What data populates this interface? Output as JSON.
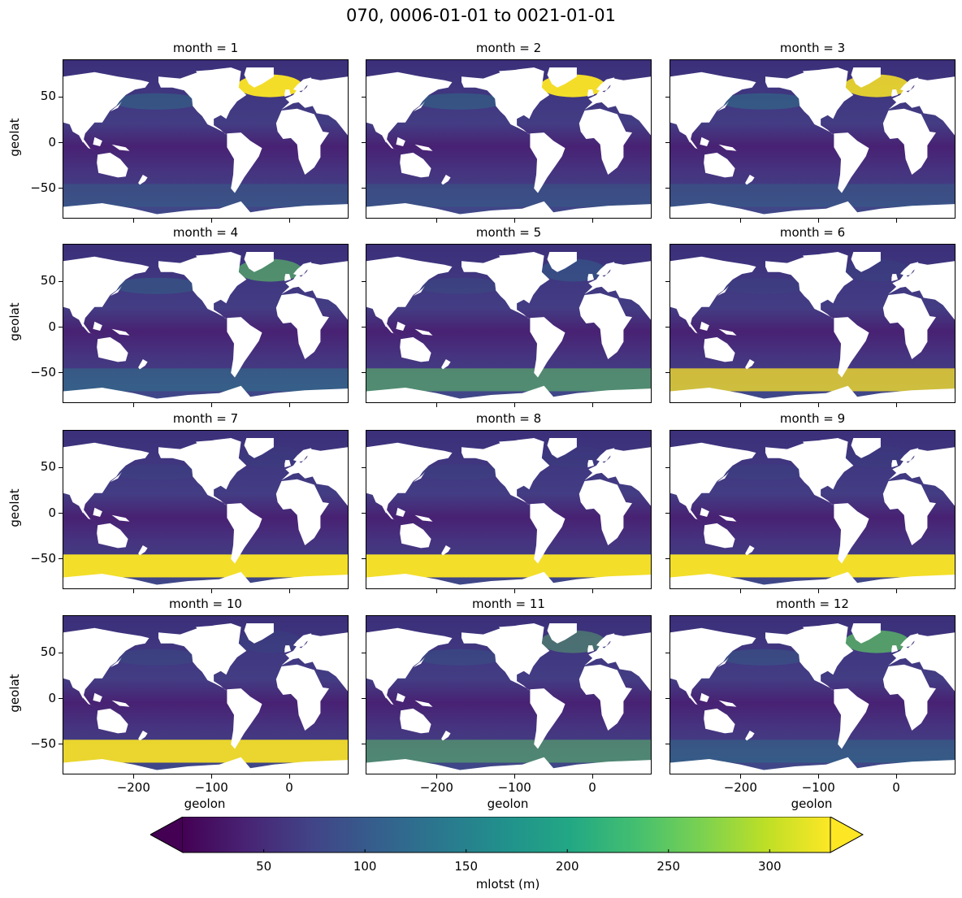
{
  "figure_title": "070, 0006-01-01 to 0021-01-01",
  "chart_data": {
    "type": "heatmap",
    "title": "070, 0006-01-01 to 0021-01-01",
    "xlabel": "geolon",
    "ylabel": "geolat",
    "xlim": [
      -290,
      75
    ],
    "ylim": [
      -82,
      90
    ],
    "xticks": [
      "−200",
      "−100",
      "0"
    ],
    "xtick_values": [
      -200,
      -100,
      0
    ],
    "yticks": [
      "50",
      "0",
      "−50"
    ],
    "ytick_values": [
      50,
      0,
      -50
    ],
    "colormap": "viridis",
    "colorbar": {
      "label": "mlotst (m)",
      "vmin": 10,
      "vmax": 330,
      "extend": "both",
      "ticks": [
        "50",
        "100",
        "150",
        "200",
        "250",
        "300"
      ],
      "tick_values": [
        50,
        100,
        150,
        200,
        250,
        300
      ]
    },
    "panels": [
      {
        "title": "month = 1",
        "month": 1,
        "north_atlantic": 0.95,
        "north_pacific": 0.3,
        "southern_ocean": 0.2
      },
      {
        "title": "month = 2",
        "month": 2,
        "north_atlantic": 1.0,
        "north_pacific": 0.3,
        "southern_ocean": 0.18
      },
      {
        "title": "month = 3",
        "month": 3,
        "north_atlantic": 0.85,
        "north_pacific": 0.35,
        "southern_ocean": 0.2
      },
      {
        "title": "month = 4",
        "month": 4,
        "north_atlantic": 0.6,
        "north_pacific": 0.25,
        "southern_ocean": 0.35
      },
      {
        "title": "month = 5",
        "month": 5,
        "north_atlantic": 0.35,
        "north_pacific": 0.1,
        "southern_ocean": 0.55
      },
      {
        "title": "month = 6",
        "month": 6,
        "north_atlantic": 0.1,
        "north_pacific": 0.05,
        "southern_ocean": 0.75
      },
      {
        "title": "month = 7",
        "month": 7,
        "north_atlantic": 0.05,
        "north_pacific": 0.05,
        "southern_ocean": 0.95
      },
      {
        "title": "month = 8",
        "month": 8,
        "north_atlantic": 0.05,
        "north_pacific": 0.05,
        "southern_ocean": 1.0
      },
      {
        "title": "month = 9",
        "month": 9,
        "north_atlantic": 0.05,
        "north_pacific": 0.05,
        "southern_ocean": 1.0
      },
      {
        "title": "month = 10",
        "month": 10,
        "north_atlantic": 0.1,
        "north_pacific": 0.1,
        "southern_ocean": 0.9
      },
      {
        "title": "month = 11",
        "month": 11,
        "north_atlantic": 0.4,
        "north_pacific": 0.15,
        "southern_ocean": 0.5
      },
      {
        "title": "month = 12",
        "month": 12,
        "north_atlantic": 0.7,
        "north_pacific": 0.2,
        "southern_ocean": 0.3
      }
    ]
  }
}
